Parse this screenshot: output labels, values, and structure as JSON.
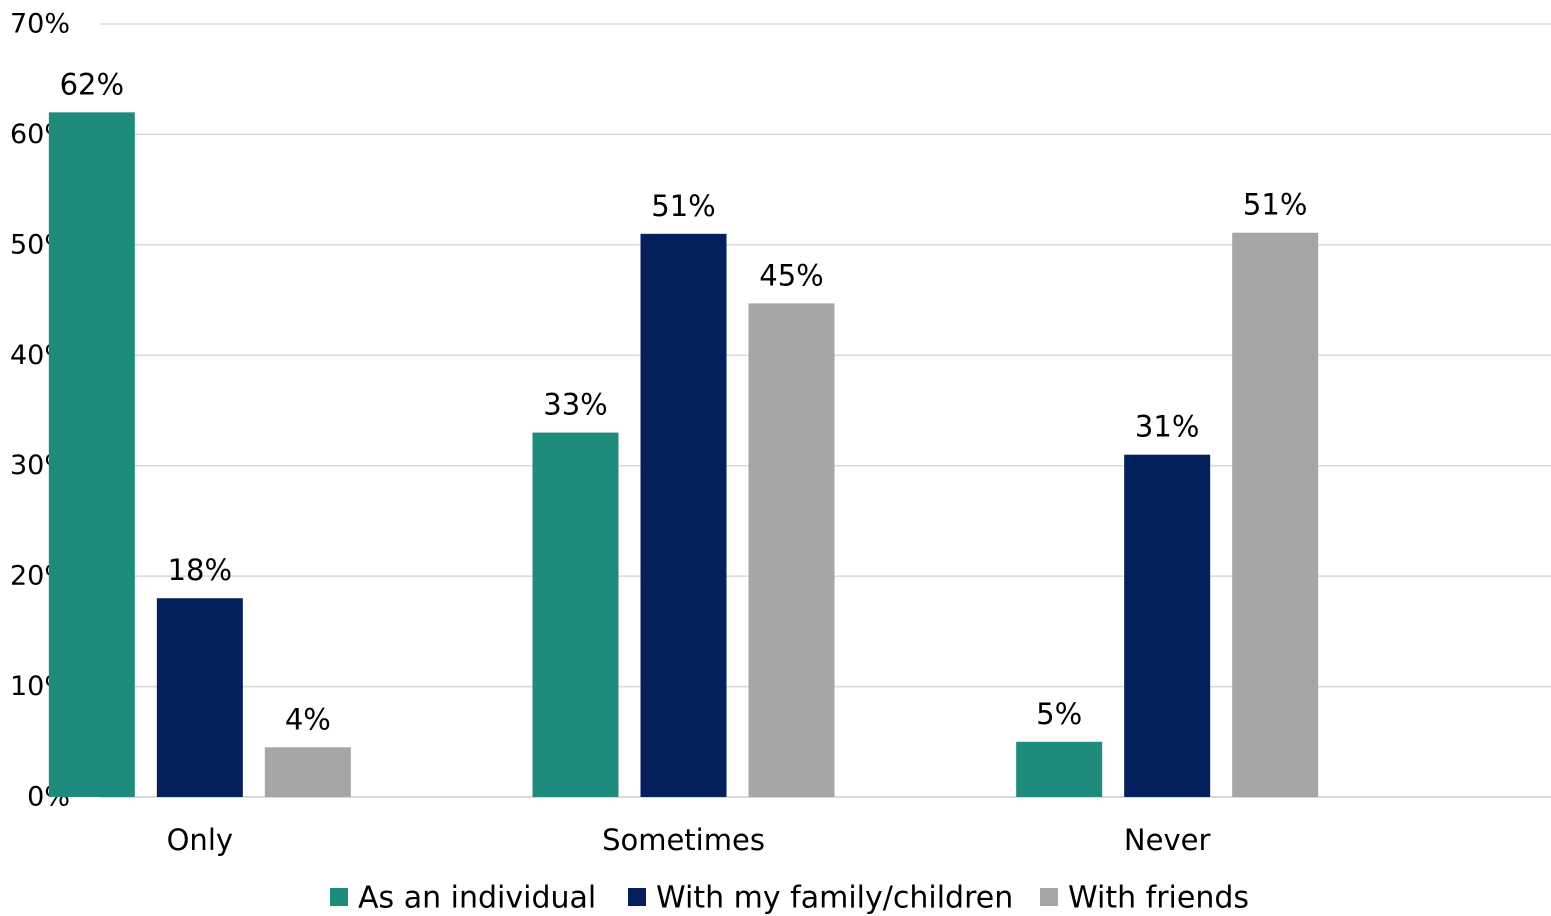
{
  "chart_data": {
    "type": "bar",
    "title": "",
    "xlabel": "",
    "ylabel": "",
    "categories": [
      "Only",
      "Sometimes",
      "Never"
    ],
    "series": [
      {
        "name": "As an individual",
        "color": "#1f8b7c",
        "values": [
          62,
          33,
          5
        ],
        "labels": [
          "62%",
          "33%",
          "5%"
        ]
      },
      {
        "name": "With my family/children",
        "color": "#031f5c",
        "values": [
          18,
          51,
          31
        ],
        "labels": [
          "18%",
          "51%",
          "31%"
        ]
      },
      {
        "name": "With friends",
        "color": "#a6a6a6",
        "values": [
          4.5,
          44.7,
          51.1
        ],
        "labels": [
          "4%",
          "45%",
          "51%"
        ]
      }
    ],
    "ylim": [
      0,
      70
    ],
    "yticks": [
      0,
      10,
      20,
      30,
      40,
      50,
      60,
      70
    ],
    "ytick_labels": [
      "0%",
      "10%",
      "20%",
      "30%",
      "40%",
      "50%",
      "60%",
      "70%"
    ],
    "grid": true,
    "legend": "bottom"
  }
}
